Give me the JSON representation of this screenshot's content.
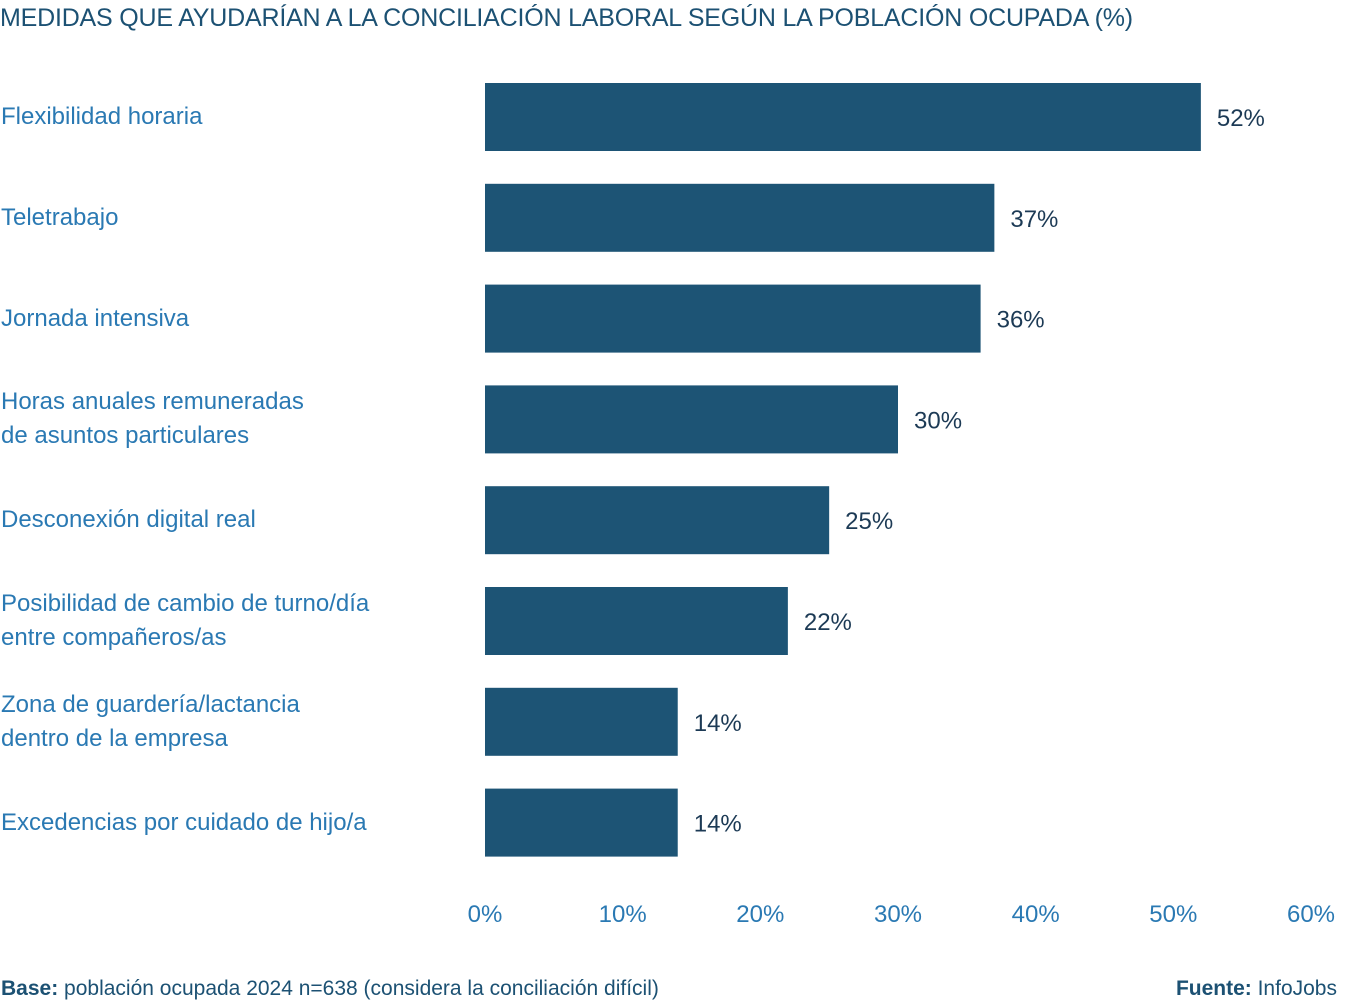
{
  "chart_data": {
    "type": "bar",
    "orientation": "horizontal",
    "title": "MEDIDAS QUE AYUDARÍAN A LA CONCILIACIÓN LABORAL SEGÚN LA POBLACIÓN OCUPADA (%)",
    "categories": [
      "Flexibilidad horaria",
      "Teletrabajo",
      "Jornada intensiva",
      "Horas anuales remuneradas\nde asuntos particulares",
      "Desconexión digital real",
      "Posibilidad de cambio de turno/día\nentre compañeros/as",
      "Zona de guardería/lactancia\ndentro de la empresa",
      "Excedencias por cuidado de hijo/a"
    ],
    "values": [
      52,
      37,
      36,
      30,
      25,
      22,
      14,
      14
    ],
    "value_labels": [
      "52%",
      "37%",
      "36%",
      "30%",
      "25%",
      "22%",
      "14%",
      "14%"
    ],
    "xlim": [
      0,
      60
    ],
    "x_ticks": [
      "0%",
      "10%",
      "20%",
      "30%",
      "40%",
      "50%",
      "60%"
    ],
    "grid": false,
    "legend": "none",
    "bar_color": "#1d5475",
    "category_label_color": "#2a79b3",
    "tick_label_color": "#2a79b3",
    "value_label_color": "#1c3a55"
  },
  "footer": {
    "base_label": "Base:",
    "base_text": " población ocupada 2024 n=638 (considera la conciliación difícil)",
    "source_label": "Fuente:",
    "source_text": " InfoJobs"
  }
}
